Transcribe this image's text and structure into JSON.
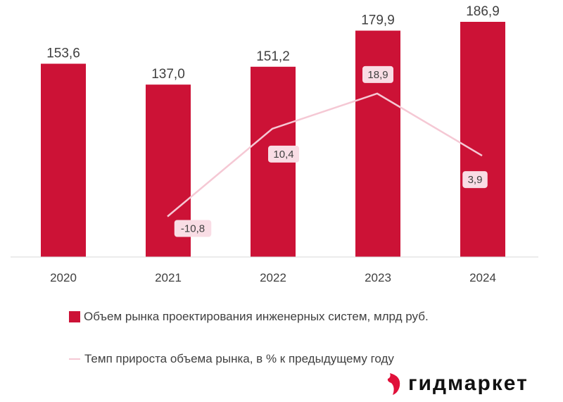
{
  "chart_data": {
    "type": "bar+line",
    "categories": [
      "2020",
      "2021",
      "2022",
      "2023",
      "2024"
    ],
    "series": [
      {
        "name": "Объем рынка проектирования инженерных систем, млрд руб.",
        "type": "bar",
        "values": [
          153.6,
          137.0,
          151.2,
          179.9,
          186.9
        ],
        "labels": [
          "153,6",
          "137,0",
          "151,2",
          "179,9",
          "186,9"
        ],
        "color": "#cc1236"
      },
      {
        "name": "Темп прироста объема рынка, в % к предыдущему году",
        "type": "line",
        "values": [
          null,
          -10.8,
          10.4,
          18.9,
          3.9
        ],
        "labels": [
          "",
          "-10,8",
          "10,4",
          "18,9",
          "3,9"
        ],
        "color": "#f5c8d4"
      }
    ],
    "legend": "bottom",
    "grid": false
  },
  "logo": {
    "text": "гидмаркет",
    "color": "#e0103a"
  }
}
